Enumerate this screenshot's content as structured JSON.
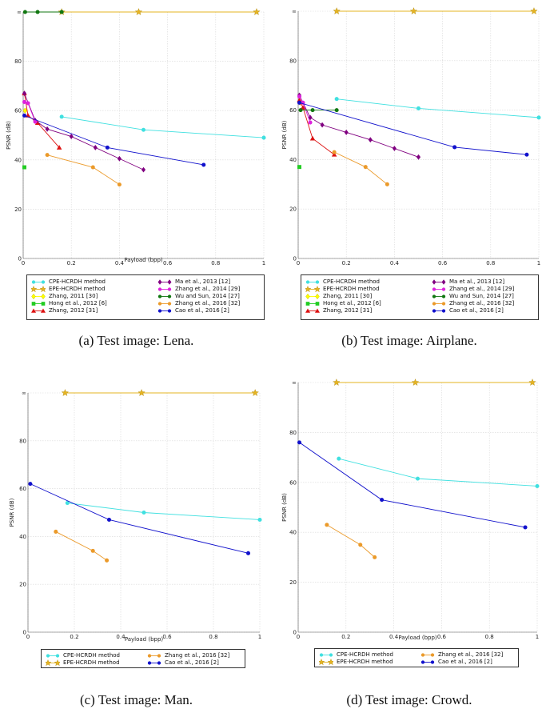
{
  "chart_data": [
    {
      "type": "line",
      "caption": "(a) Test image: Lena.",
      "xlabel": "Payload (bpp)",
      "ylabel": "PSNR (dB)",
      "xlim": [
        0,
        1
      ],
      "ylim": [
        0,
        100
      ],
      "x_ticks": [
        "0",
        "0.2",
        "0.4",
        "0.6",
        "0.8",
        "1"
      ],
      "y_ticks": [
        "0",
        "20",
        "40",
        "60",
        "80",
        "∞"
      ],
      "grid": true,
      "series": [
        {
          "name": "CPE-HCRDH method",
          "color": "#40e0e0",
          "marker": "circle",
          "points": [
            [
              0.16,
              57.5
            ],
            [
              0.5,
              52.2
            ],
            [
              1.0,
              49
            ]
          ]
        },
        {
          "name": "EPE-HCRDH method",
          "color": "#e6b422",
          "marker": "star",
          "points": [
            [
              0.16,
              100
            ],
            [
              0.48,
              100
            ],
            [
              0.97,
              100
            ]
          ]
        },
        {
          "name": "Zhang, 2011 [30]",
          "color": "#ffff00",
          "marker": "diamond",
          "points": [
            [
              0.008,
              60
            ]
          ]
        },
        {
          "name": "Hong et al., 2012 [6]",
          "color": "#22cc22",
          "marker": "square",
          "points": [
            [
              0.005,
              37
            ]
          ]
        },
        {
          "name": "Zhang, 2012 [31]",
          "color": "#dd1111",
          "marker": "triangle",
          "points": [
            [
              0.005,
              67
            ],
            [
              0.02,
              58
            ],
            [
              0.06,
              55
            ],
            [
              0.15,
              45
            ]
          ]
        },
        {
          "name": "Ma et al., 2013 [12]",
          "color": "#800080",
          "marker": "diamond",
          "points": [
            [
              0.005,
              67
            ],
            [
              0.05,
              56
            ],
            [
              0.1,
              52.5
            ],
            [
              0.2,
              49.5
            ],
            [
              0.3,
              45
            ],
            [
              0.4,
              40.5
            ],
            [
              0.5,
              36
            ]
          ]
        },
        {
          "name": "Zhang et al., 2014 [29]",
          "color": "#dd22dd",
          "marker": "circle",
          "points": [
            [
              0.005,
              63.5
            ],
            [
              0.02,
              63
            ],
            [
              0.05,
              55.5
            ]
          ]
        },
        {
          "name": "Wu and Sun, 2014 [27]",
          "color": "#117711",
          "marker": "circle",
          "points": [
            [
              0.008,
              100
            ],
            [
              0.06,
              100
            ],
            [
              0.16,
              100
            ]
          ]
        },
        {
          "name": "Zhang et al., 2016 [32]",
          "color": "#eb9a2a",
          "marker": "circle",
          "points": [
            [
              0.1,
              42
            ],
            [
              0.29,
              37
            ],
            [
              0.4,
              30
            ]
          ]
        },
        {
          "name": "Cao et al., 2016 [2]",
          "color": "#1111cc",
          "marker": "circle",
          "points": [
            [
              0.005,
              58
            ],
            [
              0.35,
              45
            ],
            [
              0.75,
              38
            ]
          ]
        }
      ]
    },
    {
      "type": "line",
      "caption": "(b) Test image: Airplane.",
      "xlabel": "",
      "ylabel": "PSNR (dB)",
      "xlim": [
        0,
        1
      ],
      "ylim": [
        0,
        100
      ],
      "x_ticks": [
        "0",
        "0.2",
        "0.4",
        "0.6",
        "0.8",
        "1"
      ],
      "y_ticks": [
        "0",
        "20",
        "40",
        "60",
        "80",
        "∞"
      ],
      "grid": true,
      "series": [
        {
          "name": "CPE-HCRDH method",
          "color": "#40e0e0",
          "marker": "circle",
          "points": [
            [
              0.16,
              64.5
            ],
            [
              0.5,
              60.7
            ],
            [
              1.0,
              57
            ]
          ]
        },
        {
          "name": "EPE-HCRDH method",
          "color": "#e6b422",
          "marker": "star",
          "points": [
            [
              0.16,
              100
            ],
            [
              0.48,
              100
            ],
            [
              0.98,
              100
            ]
          ]
        },
        {
          "name": "Zhang, 2011 [30]",
          "color": "#ffff00",
          "marker": "diamond",
          "points": [
            [
              0.008,
              63
            ]
          ]
        },
        {
          "name": "Hong et al., 2012 [6]",
          "color": "#22cc22",
          "marker": "square",
          "points": [
            [
              0.005,
              37
            ]
          ]
        },
        {
          "name": "Zhang, 2012 [31]",
          "color": "#dd1111",
          "marker": "triangle",
          "points": [
            [
              0.005,
              64
            ],
            [
              0.02,
              61
            ],
            [
              0.06,
              48.5
            ],
            [
              0.15,
              42
            ]
          ]
        },
        {
          "name": "Ma et al., 2013 [12]",
          "color": "#800080",
          "marker": "diamond",
          "points": [
            [
              0.005,
              66
            ],
            [
              0.05,
              57
            ],
            [
              0.1,
              54
            ],
            [
              0.2,
              51
            ],
            [
              0.3,
              48
            ],
            [
              0.4,
              44.5
            ],
            [
              0.5,
              41
            ]
          ]
        },
        {
          "name": "Zhang et al., 2014 [29]",
          "color": "#dd22dd",
          "marker": "circle",
          "points": [
            [
              0.005,
              65.5
            ],
            [
              0.02,
              63
            ],
            [
              0.05,
              55
            ]
          ]
        },
        {
          "name": "Wu and Sun, 2014 [27]",
          "color": "#117711",
          "marker": "circle",
          "points": [
            [
              0.01,
              60
            ],
            [
              0.06,
              60
            ],
            [
              0.16,
              60
            ]
          ]
        },
        {
          "name": "Zhang et al., 2016 [32]",
          "color": "#eb9a2a",
          "marker": "circle",
          "points": [
            [
              0.15,
              43
            ],
            [
              0.28,
              37
            ],
            [
              0.37,
              30
            ]
          ]
        },
        {
          "name": "Cao et al., 2016 [2]",
          "color": "#1111cc",
          "marker": "circle",
          "points": [
            [
              0.005,
              63
            ],
            [
              0.65,
              45
            ],
            [
              0.95,
              42
            ]
          ]
        }
      ]
    },
    {
      "type": "line",
      "caption": "(c) Test image: Man.",
      "xlabel": "Payload (bpp)",
      "ylabel": "PSNR (dB)",
      "xlim": [
        0,
        1
      ],
      "ylim": [
        0,
        100
      ],
      "x_ticks": [
        "0",
        "0.2",
        "0.4",
        "0.6",
        "0.8",
        "1"
      ],
      "y_ticks": [
        "0",
        "20",
        "40",
        "60",
        "80",
        "∞"
      ],
      "grid": true,
      "series": [
        {
          "name": "CPE-HCRDH method",
          "color": "#40e0e0",
          "marker": "circle",
          "points": [
            [
              0.17,
              54
            ],
            [
              0.5,
              50
            ],
            [
              1.0,
              47
            ]
          ]
        },
        {
          "name": "EPE-HCRDH method",
          "color": "#e6b422",
          "marker": "star",
          "points": [
            [
              0.16,
              100
            ],
            [
              0.49,
              100
            ],
            [
              0.98,
              100
            ]
          ]
        },
        {
          "name": "Zhang et al., 2016 [32]",
          "color": "#eb9a2a",
          "marker": "circle",
          "points": [
            [
              0.12,
              42
            ],
            [
              0.28,
              34
            ],
            [
              0.34,
              30
            ]
          ]
        },
        {
          "name": "Cao et al., 2016 [2]",
          "color": "#1111cc",
          "marker": "circle",
          "points": [
            [
              0.01,
              62
            ],
            [
              0.35,
              47
            ],
            [
              0.95,
              33
            ]
          ]
        }
      ]
    },
    {
      "type": "line",
      "caption": "(d) Test image: Crowd.",
      "xlabel": "Payload (bpp)",
      "ylabel": "PSNR (dB)",
      "xlim": [
        0,
        1
      ],
      "ylim": [
        0,
        100
      ],
      "x_ticks": [
        "0",
        "0.2",
        "0.4",
        "0.6",
        "0.8",
        "1"
      ],
      "y_ticks": [
        "0",
        "20",
        "40",
        "60",
        "80",
        "∞"
      ],
      "grid": true,
      "series": [
        {
          "name": "CPE-HCRDH method",
          "color": "#40e0e0",
          "marker": "circle",
          "points": [
            [
              0.17,
              69.5
            ],
            [
              0.5,
              61.5
            ],
            [
              1.0,
              58.5
            ]
          ]
        },
        {
          "name": "EPE-HCRDH method",
          "color": "#e6b422",
          "marker": "star",
          "points": [
            [
              0.16,
              100
            ],
            [
              0.49,
              100
            ],
            [
              0.98,
              100
            ]
          ]
        },
        {
          "name": "Zhang et al., 2016 [32]",
          "color": "#eb9a2a",
          "marker": "circle",
          "points": [
            [
              0.12,
              43
            ],
            [
              0.26,
              35
            ],
            [
              0.32,
              30
            ]
          ]
        },
        {
          "name": "Cao et al., 2016 [2]",
          "color": "#1111cc",
          "marker": "circle",
          "points": [
            [
              0.005,
              76
            ],
            [
              0.35,
              53
            ],
            [
              0.95,
              42
            ]
          ]
        }
      ]
    }
  ]
}
